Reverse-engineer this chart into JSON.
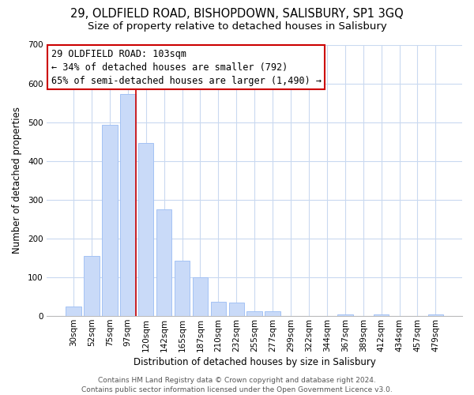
{
  "title": "29, OLDFIELD ROAD, BISHOPDOWN, SALISBURY, SP1 3GQ",
  "subtitle": "Size of property relative to detached houses in Salisbury",
  "xlabel": "Distribution of detached houses by size in Salisbury",
  "ylabel": "Number of detached properties",
  "bar_labels": [
    "30sqm",
    "52sqm",
    "75sqm",
    "97sqm",
    "120sqm",
    "142sqm",
    "165sqm",
    "187sqm",
    "210sqm",
    "232sqm",
    "255sqm",
    "277sqm",
    "299sqm",
    "322sqm",
    "344sqm",
    "367sqm",
    "389sqm",
    "412sqm",
    "434sqm",
    "457sqm",
    "479sqm"
  ],
  "bar_values": [
    25,
    155,
    493,
    573,
    447,
    275,
    143,
    100,
    37,
    35,
    13,
    13,
    0,
    0,
    0,
    5,
    0,
    5,
    0,
    0,
    5
  ],
  "bar_color": "#c9daf8",
  "bar_edge_color": "#a4c2f4",
  "vline_bar_index": 3,
  "vline_color": "#cc0000",
  "ylim": [
    0,
    700
  ],
  "yticks": [
    0,
    100,
    200,
    300,
    400,
    500,
    600,
    700
  ],
  "annotation_title": "29 OLDFIELD ROAD: 103sqm",
  "annotation_line1": "← 34% of detached houses are smaller (792)",
  "annotation_line2": "65% of semi-detached houses are larger (1,490) →",
  "footer_line1": "Contains HM Land Registry data © Crown copyright and database right 2024.",
  "footer_line2": "Contains public sector information licensed under the Open Government Licence v3.0.",
  "background_color": "#ffffff",
  "grid_color": "#c9d9f0",
  "title_fontsize": 10.5,
  "subtitle_fontsize": 9.5,
  "axis_label_fontsize": 8.5,
  "tick_fontsize": 7.5,
  "footer_fontsize": 6.5,
  "annotation_fontsize": 8.5
}
